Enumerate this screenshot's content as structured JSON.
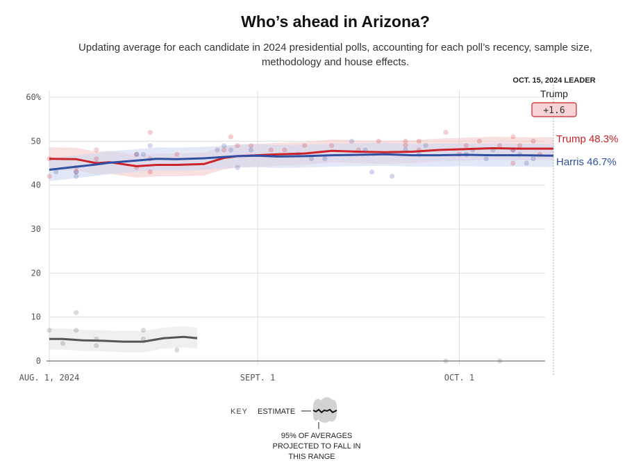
{
  "header": {
    "title": "Who’s ahead in Arizona?",
    "subtitle": "Updating average for each candidate in 2024 presidential polls, accounting for each poll’s recency, sample size, methodology and house effects."
  },
  "leader": {
    "label": "OCT. 15, 2024 LEADER",
    "name": "Trump",
    "margin": "+1.6"
  },
  "key": {
    "label": "KEY",
    "estimate": "ESTIMATE",
    "range_line1": "95% OF AVERAGES",
    "range_line2": "PROJECTED TO FALL IN",
    "range_line3": "THIS RANGE"
  },
  "colors": {
    "trump": "#cc2229",
    "harris": "#2f4fa2",
    "other": "#555555",
    "trump_band": "#f4c9cb",
    "harris_band": "#cfd9f0",
    "other_band": "#e4e4e4",
    "grid": "#dddddd"
  },
  "chart_data": {
    "type": "line",
    "x_range": [
      "2024-08-01",
      "2024-10-15"
    ],
    "ylim": [
      0,
      60
    ],
    "y_ticks": [
      0,
      10,
      20,
      30,
      40,
      50,
      60
    ],
    "y_tick_labels": [
      "0",
      "10",
      "20",
      "30",
      "40",
      "50",
      "60%"
    ],
    "x_ticks": [
      {
        "date": "2024-08-01",
        "label": "AUG. 1, 2024"
      },
      {
        "date": "2024-09-01",
        "label": "SEPT. 1"
      },
      {
        "date": "2024-10-01",
        "label": "OCT. 1"
      }
    ],
    "grid": true,
    "series": [
      {
        "name": "Trump",
        "key": "trump",
        "end_label": "Trump 48.3%",
        "band_width": 2.6,
        "x": [
          "2024-08-01",
          "2024-08-05",
          "2024-08-08",
          "2024-08-10",
          "2024-08-14",
          "2024-08-17",
          "2024-08-20",
          "2024-08-24",
          "2024-08-27",
          "2024-08-29",
          "2024-09-01",
          "2024-09-04",
          "2024-09-08",
          "2024-09-12",
          "2024-09-16",
          "2024-09-20",
          "2024-09-24",
          "2024-09-28",
          "2024-10-02",
          "2024-10-06",
          "2024-10-10",
          "2024-10-15"
        ],
        "y": [
          46.0,
          45.9,
          45.0,
          45.2,
          44.3,
          44.6,
          44.6,
          44.8,
          46.2,
          46.6,
          46.8,
          47.0,
          47.2,
          47.8,
          47.6,
          47.5,
          47.6,
          48.0,
          48.2,
          48.4,
          48.3,
          48.3
        ],
        "points": [
          [
            0,
            42
          ],
          [
            0,
            46
          ],
          [
            4,
            43
          ],
          [
            4,
            44
          ],
          [
            7,
            46
          ],
          [
            7,
            48
          ],
          [
            13,
            44
          ],
          [
            13,
            47
          ],
          [
            15,
            43
          ],
          [
            15,
            46
          ],
          [
            15,
            52
          ],
          [
            19,
            47
          ],
          [
            26,
            48
          ],
          [
            27,
            51
          ],
          [
            28,
            49
          ],
          [
            30,
            49
          ],
          [
            33,
            48
          ],
          [
            35,
            48
          ],
          [
            38,
            49
          ],
          [
            42,
            49
          ],
          [
            46,
            48
          ],
          [
            49,
            50
          ],
          [
            53,
            50
          ],
          [
            53,
            49
          ],
          [
            55,
            50
          ],
          [
            55,
            48
          ],
          [
            59,
            52
          ],
          [
            61,
            47
          ],
          [
            62,
            49
          ],
          [
            64,
            50
          ],
          [
            67,
            49
          ],
          [
            69,
            51
          ],
          [
            69,
            48
          ],
          [
            69,
            45
          ],
          [
            70,
            49
          ],
          [
            72,
            50
          ],
          [
            73,
            47
          ]
        ]
      },
      {
        "name": "Harris",
        "key": "harris",
        "end_label": "Harris 46.7%",
        "band_width": 2.6,
        "x": [
          "2024-08-01",
          "2024-08-05",
          "2024-08-08",
          "2024-08-10",
          "2024-08-14",
          "2024-08-17",
          "2024-08-20",
          "2024-08-24",
          "2024-08-27",
          "2024-08-29",
          "2024-09-01",
          "2024-09-04",
          "2024-09-08",
          "2024-09-12",
          "2024-09-16",
          "2024-09-20",
          "2024-09-24",
          "2024-09-28",
          "2024-10-02",
          "2024-10-06",
          "2024-10-10",
          "2024-10-15"
        ],
        "y": [
          43.5,
          44.2,
          44.7,
          45.1,
          45.6,
          46.0,
          45.9,
          46.1,
          46.4,
          46.6,
          46.7,
          46.5,
          46.6,
          46.8,
          46.9,
          47.0,
          46.8,
          46.8,
          46.9,
          46.8,
          46.8,
          46.7
        ],
        "points": [
          [
            1,
            43
          ],
          [
            4,
            42
          ],
          [
            4,
            43
          ],
          [
            7,
            45
          ],
          [
            13,
            47
          ],
          [
            14,
            47
          ],
          [
            15,
            49
          ],
          [
            25,
            48
          ],
          [
            26,
            49
          ],
          [
            27,
            48
          ],
          [
            28,
            44
          ],
          [
            30,
            48
          ],
          [
            37,
            47
          ],
          [
            39,
            46
          ],
          [
            41,
            46
          ],
          [
            45,
            50
          ],
          [
            47,
            48
          ],
          [
            48,
            43
          ],
          [
            51,
            42
          ],
          [
            53,
            48
          ],
          [
            55,
            47
          ],
          [
            56,
            49
          ],
          [
            62,
            47
          ],
          [
            63,
            48
          ],
          [
            65,
            46
          ],
          [
            66,
            48
          ],
          [
            69,
            48
          ],
          [
            70,
            47
          ],
          [
            71,
            45
          ],
          [
            72,
            46
          ]
        ]
      },
      {
        "name": "Other",
        "key": "other",
        "end_label": "",
        "band_width": 2.4,
        "x": [
          "2024-08-01",
          "2024-08-03",
          "2024-08-06",
          "2024-08-09",
          "2024-08-12",
          "2024-08-15",
          "2024-08-18",
          "2024-08-21",
          "2024-08-23"
        ],
        "y": [
          5.0,
          5.0,
          4.7,
          4.6,
          4.4,
          4.4,
          5.2,
          5.5,
          5.2
        ],
        "points": [
          [
            0,
            7
          ],
          [
            2,
            4
          ],
          [
            4,
            7
          ],
          [
            4,
            11
          ],
          [
            7,
            5
          ],
          [
            7,
            3.5
          ],
          [
            14,
            7
          ],
          [
            14,
            5
          ],
          [
            19,
            2.5
          ],
          [
            59,
            0
          ],
          [
            67,
            0
          ]
        ]
      }
    ]
  }
}
